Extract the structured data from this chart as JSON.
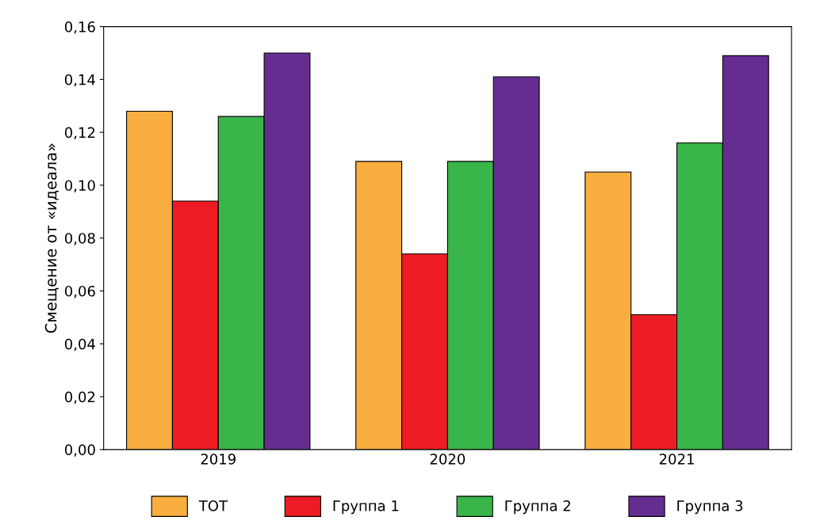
{
  "chart_data": {
    "type": "bar",
    "ylabel": "Смещение от «идеала»",
    "categories": [
      "2019",
      "2020",
      "2021"
    ],
    "series": [
      {
        "name": "ТОТ",
        "color": "#f9ae3f",
        "values": [
          0.128,
          0.109,
          0.105
        ]
      },
      {
        "name": "Группа 1",
        "color": "#ed1c24",
        "values": [
          0.094,
          0.074,
          0.051
        ]
      },
      {
        "name": "Группа 2",
        "color": "#39b54a",
        "values": [
          0.126,
          0.109,
          0.116
        ]
      },
      {
        "name": "Группа 3",
        "color": "#662d91",
        "values": [
          0.15,
          0.141,
          0.149
        ]
      }
    ],
    "ylim": [
      0,
      0.16
    ],
    "yticks": [
      {
        "value": 0,
        "label": "0,00"
      },
      {
        "value": 0.02,
        "label": "0,02"
      },
      {
        "value": 0.04,
        "label": "0,04"
      },
      {
        "value": 0.06,
        "label": "0,06"
      },
      {
        "value": 0.08,
        "label": "0,08"
      },
      {
        "value": 0.1,
        "label": "0,10"
      },
      {
        "value": 0.12,
        "label": "0,12"
      },
      {
        "value": 0.14,
        "label": "0,14"
      },
      {
        "value": 0.16,
        "label": "0,16"
      }
    ],
    "grid": false,
    "legend": "bottom"
  }
}
